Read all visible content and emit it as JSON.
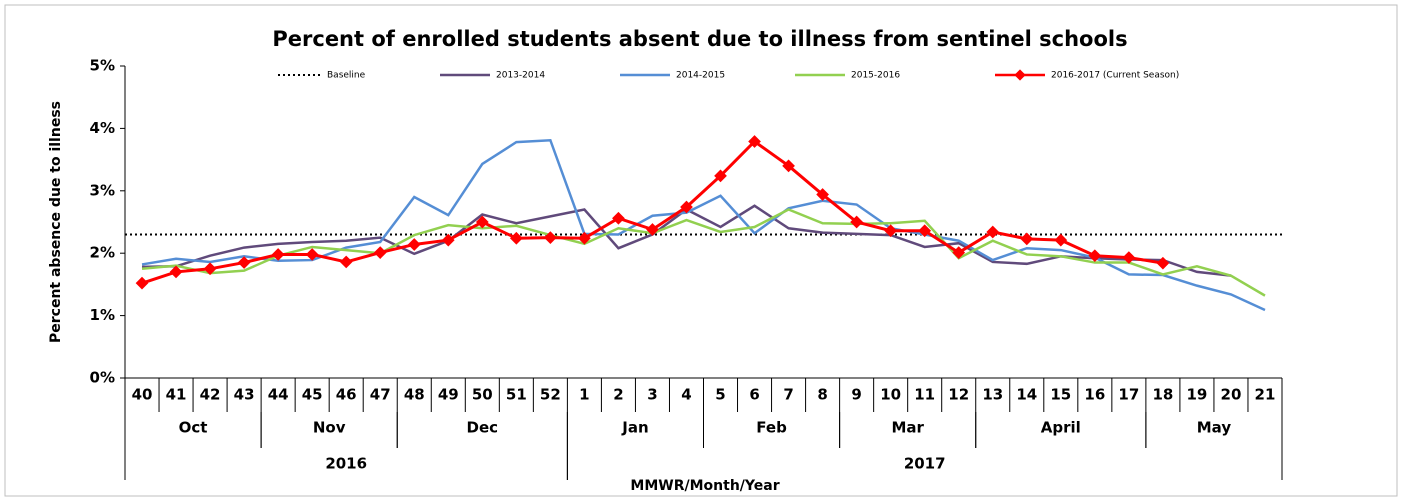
{
  "chart_data": {
    "type": "line",
    "title": "Percent of enrolled students absent due to illness from sentinel schools",
    "y_label": "Percent absence due to illness",
    "x_label": "MMWR/Month/Year",
    "categories": [
      "40",
      "41",
      "42",
      "43",
      "44",
      "45",
      "46",
      "47",
      "48",
      "49",
      "50",
      "51",
      "52",
      "1",
      "2",
      "3",
      "4",
      "5",
      "6",
      "7",
      "8",
      "9",
      "10",
      "11",
      "12",
      "13",
      "14",
      "15",
      "16",
      "17",
      "18",
      "19",
      "20",
      "21"
    ],
    "month_groups": [
      {
        "label": "Oct",
        "from": "40",
        "to": "43"
      },
      {
        "label": "Nov",
        "from": "44",
        "to": "47"
      },
      {
        "label": "Dec",
        "from": "48",
        "to": "52"
      },
      {
        "label": "Jan",
        "from": "1",
        "to": "4"
      },
      {
        "label": "Feb",
        "from": "5",
        "to": "8"
      },
      {
        "label": "Mar",
        "from": "9",
        "to": "12"
      },
      {
        "label": "April",
        "from": "13",
        "to": "17"
      },
      {
        "label": "May",
        "from": "18",
        "to": "21"
      }
    ],
    "year_groups": [
      {
        "label": "2016",
        "from": "40",
        "to": "52"
      },
      {
        "label": "2017",
        "from": "1",
        "to": "21"
      }
    ],
    "baseline": {
      "name": "Baseline",
      "value": 2.3,
      "color": "#000000"
    },
    "series": [
      {
        "name": "2013-2014",
        "color": "#604a7b",
        "values": [
          1.78,
          1.79,
          1.96,
          2.09,
          2.15,
          2.18,
          2.2,
          2.25,
          1.99,
          2.2,
          2.62,
          2.48,
          2.59,
          2.7,
          2.08,
          2.3,
          2.7,
          2.42,
          2.76,
          2.4,
          2.33,
          2.31,
          2.29,
          2.1,
          2.16,
          1.86,
          1.83,
          1.95,
          1.92,
          1.9,
          1.89,
          1.7,
          1.64,
          null
        ]
      },
      {
        "name": "2014-2015",
        "color": "#558ed5",
        "values": [
          1.82,
          1.91,
          1.86,
          1.95,
          1.88,
          1.89,
          2.09,
          2.18,
          2.9,
          2.61,
          3.43,
          3.78,
          3.81,
          2.31,
          2.3,
          2.6,
          2.65,
          2.92,
          2.32,
          2.72,
          2.84,
          2.78,
          2.4,
          2.3,
          2.2,
          1.89,
          2.08,
          2.05,
          1.93,
          1.66,
          1.65,
          1.48,
          1.34,
          1.09
        ]
      },
      {
        "name": "2015-2016",
        "color": "#92d050",
        "values": [
          1.75,
          1.8,
          1.68,
          1.72,
          1.96,
          2.1,
          2.05,
          2.0,
          2.29,
          2.45,
          2.4,
          2.44,
          2.29,
          2.15,
          2.4,
          2.32,
          2.53,
          2.34,
          2.42,
          2.7,
          2.48,
          2.47,
          2.48,
          2.52,
          1.92,
          2.2,
          1.98,
          1.95,
          1.85,
          1.85,
          1.66,
          1.79,
          1.64,
          1.32
        ]
      },
      {
        "name": "2016-2017 (Current Season)",
        "color": "#ff0000",
        "markers": true,
        "values": [
          1.52,
          1.7,
          1.75,
          1.85,
          1.98,
          1.98,
          1.86,
          2.01,
          2.14,
          2.21,
          2.5,
          2.24,
          2.25,
          2.24,
          2.56,
          2.38,
          2.74,
          3.24,
          3.79,
          3.4,
          2.94,
          2.5,
          2.36,
          2.36,
          2.01,
          2.34,
          2.23,
          2.21,
          1.96,
          1.93,
          1.84,
          null,
          null,
          null
        ]
      }
    ],
    "ylim": [
      0,
      5
    ],
    "yticks": [
      {
        "value": 0,
        "label": "0%"
      },
      {
        "value": 1,
        "label": "1%"
      },
      {
        "value": 2,
        "label": "2%"
      },
      {
        "value": 3,
        "label": "3%"
      },
      {
        "value": 4,
        "label": "4%"
      },
      {
        "value": 5,
        "label": "5%"
      }
    ]
  }
}
